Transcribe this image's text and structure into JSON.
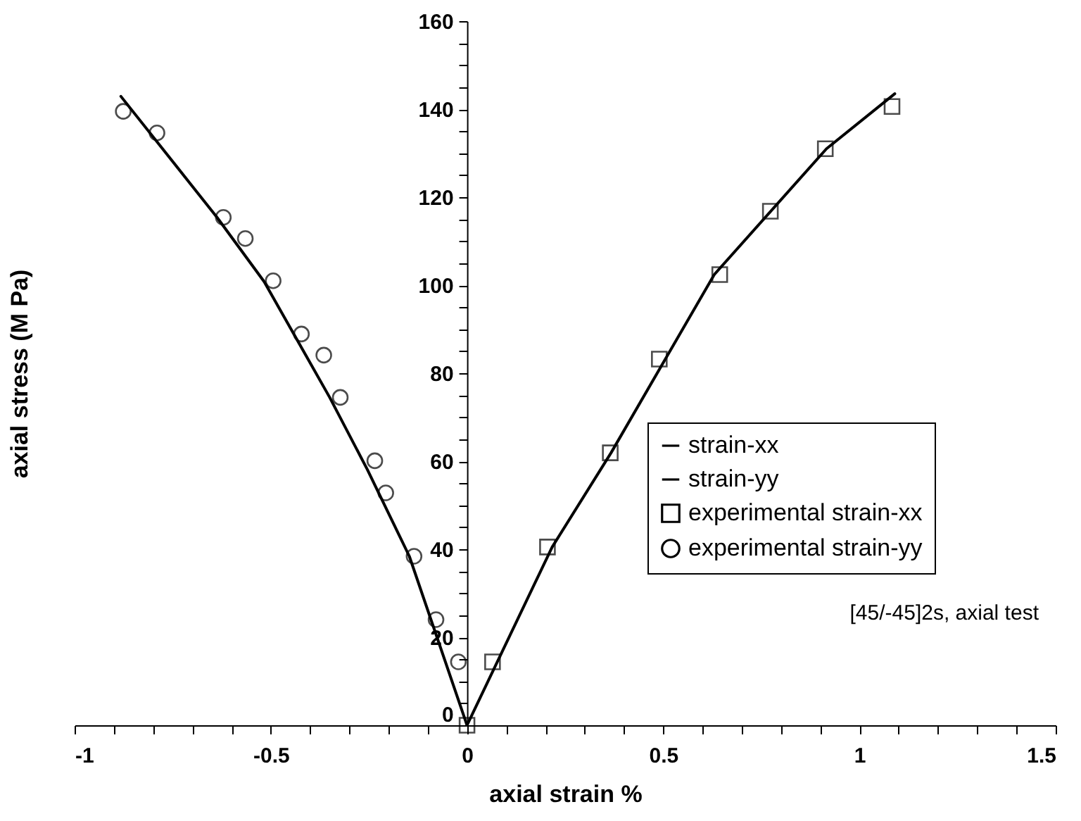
{
  "chart_data": {
    "type": "scatter",
    "xlabel": "axial strain %",
    "ylabel": "axial stress (M Pa)",
    "xlim": [
      -1,
      1.5
    ],
    "ylim": [
      0,
      160
    ],
    "xticks": [
      -1,
      {
        "value": -0.9,
        "label": null
      },
      {
        "value": -0.8,
        "label": null
      },
      {
        "value": -0.7,
        "label": null
      },
      {
        "value": -0.6,
        "label": null
      },
      -0.5,
      {
        "value": -0.4,
        "label": null
      },
      {
        "value": -0.3,
        "label": null
      },
      {
        "value": -0.2,
        "label": null
      },
      {
        "value": -0.1,
        "label": null
      },
      0,
      {
        "value": 0.1,
        "label": null
      },
      {
        "value": 0.2,
        "label": null
      },
      {
        "value": 0.3,
        "label": null
      },
      {
        "value": 0.4,
        "label": null
      },
      0.5,
      {
        "value": 0.6,
        "label": null
      },
      {
        "value": 0.7,
        "label": null
      },
      {
        "value": 0.8,
        "label": null
      },
      {
        "value": 0.9,
        "label": null
      },
      1,
      {
        "value": 1.1,
        "label": null
      },
      {
        "value": 1.2,
        "label": null
      },
      {
        "value": 1.3,
        "label": null
      },
      {
        "value": 1.4,
        "label": null
      },
      1.5
    ],
    "yticks": [
      0,
      {
        "value": 5,
        "label": null
      },
      {
        "value": 10,
        "label": null
      },
      {
        "value": 15,
        "label": null
      },
      20,
      {
        "value": 25,
        "label": null
      },
      {
        "value": 30,
        "label": null
      },
      {
        "value": 35,
        "label": null
      },
      40,
      {
        "value": 45,
        "label": null
      },
      {
        "value": 50,
        "label": null
      },
      {
        "value": 55,
        "label": null
      },
      60,
      {
        "value": 65,
        "label": null
      },
      {
        "value": 70,
        "label": null
      },
      {
        "value": 75,
        "label": null
      },
      80,
      {
        "value": 85,
        "label": null
      },
      {
        "value": 90,
        "label": null
      },
      {
        "value": 95,
        "label": null
      },
      100,
      {
        "value": 105,
        "label": null
      },
      {
        "value": 110,
        "label": null
      },
      {
        "value": 115,
        "label": null
      },
      120,
      {
        "value": 125,
        "label": null
      },
      {
        "value": 130,
        "label": null
      },
      {
        "value": 135,
        "label": null
      },
      140,
      {
        "value": 145,
        "label": null
      },
      {
        "value": 150,
        "label": null
      },
      {
        "value": 155,
        "label": null
      },
      160
    ],
    "grid": false,
    "legend": "right",
    "annotations": [
      "[45/-45]2s, axial test"
    ],
    "series": [
      {
        "name": "strain-xx",
        "type": "line",
        "color": "#000000",
        "line_style": "solid",
        "marker": "none",
        "x": [
          0,
          0.217,
          0.367,
          0.63,
          0.916,
          1.09
        ],
        "values": [
          0,
          40.5,
          61.9,
          102.4,
          131,
          143.5
        ]
      },
      {
        "name": "strain-yy",
        "type": "line",
        "color": "#000000",
        "line_style": "solid",
        "marker": "none",
        "x": [
          0,
          -0.147,
          -0.254,
          -0.35,
          -0.517,
          -0.637,
          -0.882
        ],
        "values": [
          0,
          38.4,
          58.1,
          74.5,
          100.8,
          115.4,
          142.9
        ]
      },
      {
        "name": "experimental strain-xx",
        "type": "scatter",
        "color": "#000000",
        "marker": "square",
        "x": [
          0,
          0.065,
          0.205,
          0.365,
          0.49,
          0.644,
          0.773,
          0.913,
          1.083
        ],
        "values": [
          0,
          14.4,
          40.5,
          61.9,
          83.2,
          102.4,
          116.8,
          131,
          140.6
        ]
      },
      {
        "name": "experimental strain-yy",
        "type": "scatter",
        "color": "#000000",
        "marker": "circle",
        "x": [
          -0.022,
          -0.079,
          -0.135,
          -0.207,
          -0.235,
          -0.323,
          -0.365,
          -0.422,
          -0.494,
          -0.565,
          -0.621,
          -0.79,
          -0.876
        ],
        "values": [
          14.4,
          24,
          38.4,
          52.8,
          60.1,
          74.5,
          84.1,
          88.9,
          101,
          110.6,
          115.4,
          134.6,
          139.5
        ]
      }
    ]
  }
}
